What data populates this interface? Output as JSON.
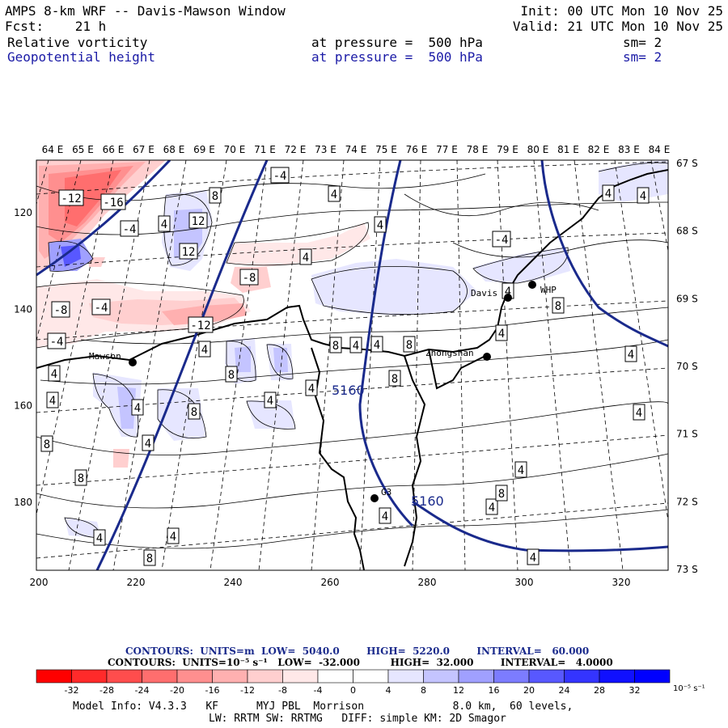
{
  "header": {
    "title": "AMPS 8-km WRF -- Davis-Mawson Window",
    "fcst": "Fcst:    21 h",
    "init": "Init: 00 UTC Mon 10 Nov 25",
    "valid": "Valid: 21 UTC Mon 10 Nov 25",
    "field1": {
      "name": "Relative vorticity",
      "level": "at pressure =  500 hPa",
      "sm": "sm= 2"
    },
    "field2": {
      "name": "Geopotential height",
      "level": "at pressure =  500 hPa",
      "sm": "sm= 2"
    }
  },
  "map": {
    "top_lon_labels": [
      "64 E",
      "65 E",
      "66 E",
      "67 E",
      "68 E",
      "69 E",
      "70 E",
      "71 E",
      "72 E",
      "73 E",
      "74 E",
      "75 E",
      "76 E",
      "77 E",
      "78 E",
      "79 E",
      "80 E",
      "81 E",
      "82 E",
      "83 E",
      "84 E"
    ],
    "right_lat_labels": [
      "67 S",
      "68 S",
      "69 S",
      "70 S",
      "71 S",
      "72 S",
      "73 S"
    ],
    "left_grid_labels": [
      "120",
      "140",
      "160",
      "180"
    ],
    "bottom_grid_labels": [
      "200",
      "220",
      "240",
      "260",
      "280",
      "300",
      "320"
    ],
    "stations": [
      {
        "name": "Mawson"
      },
      {
        "name": "Davis"
      },
      {
        "name": "WHP"
      },
      {
        "name": "Zhongshan"
      },
      {
        "name": "G3"
      }
    ],
    "contour_labels": {
      "vorticity": [
        "-12",
        "-16",
        "-4",
        "4",
        "8",
        "12",
        "12",
        "-4",
        "4",
        "4",
        "4",
        "-4",
        "-8",
        "-8",
        "-4",
        "-12",
        "-4",
        "4",
        "8",
        "8",
        "4",
        "8",
        "8",
        "4",
        "4",
        "8",
        "4",
        "4",
        "4",
        "4",
        "8",
        "8",
        "4",
        "4",
        "8",
        "4",
        "4",
        "4",
        "4",
        "4",
        "4",
        "8",
        "4",
        "4",
        "4",
        "4",
        "4",
        "8"
      ],
      "height": [
        "5160",
        "5160"
      ]
    },
    "colors": {
      "height_contour": "#1a2a8c",
      "coast": "#000000"
    }
  },
  "contour_info": {
    "line1": "CONTOURS:  UNITS=m  LOW=  5040.0        HIGH=  5220.0        INTERVAL=   60.000",
    "line2": "CONTOURS:  UNITS=10⁻⁵ s⁻¹   LOW=  -32.000         HIGH=  32.000        INTERVAL=   4.0000"
  },
  "colorbar": {
    "labels": [
      "-32",
      "-28",
      "-24",
      "-20",
      "-16",
      "-12",
      "-8",
      "-4",
      "0",
      "4",
      "8",
      "12",
      "16",
      "20",
      "24",
      "28",
      "32"
    ],
    "unit": "10⁻⁵ s⁻¹",
    "colors": [
      "#ff0000",
      "#ff2a2a",
      "#ff4d4d",
      "#ff6e6e",
      "#ff8f8f",
      "#ffb0b0",
      "#ffcfcf",
      "#ffe8e8",
      "#ffffff",
      "#ffffff",
      "#e6e6ff",
      "#c4c4ff",
      "#a0a0ff",
      "#7c7cff",
      "#5858ff",
      "#3434ff",
      "#1010ff"
    ]
  },
  "footer": {
    "line1": "Model Info: V4.3.3   KF      MYJ PBL  Morrison              8.0 km,  60 levels,",
    "line2": "LW: RRTM SW: RRTMG   DIFF: simple KM: 2D Smagor"
  }
}
